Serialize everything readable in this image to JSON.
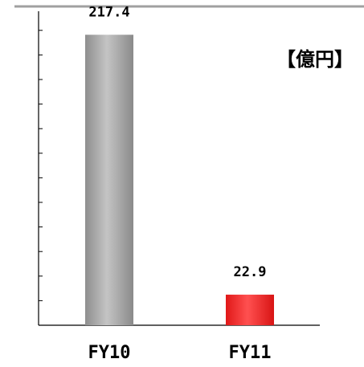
{
  "chart_data": {
    "type": "bar",
    "categories": [
      "FY10",
      "FY11"
    ],
    "values": [
      217.4,
      22.9
    ],
    "value_labels": [
      "217.4",
      "22.9"
    ],
    "unit": "【億円】",
    "title": "",
    "xlabel": "",
    "ylabel": "",
    "ylim": [
      0,
      235
    ],
    "grid": false,
    "legend": "none",
    "bar_colors": [
      "#a8a8a8",
      "#ee2222"
    ]
  }
}
